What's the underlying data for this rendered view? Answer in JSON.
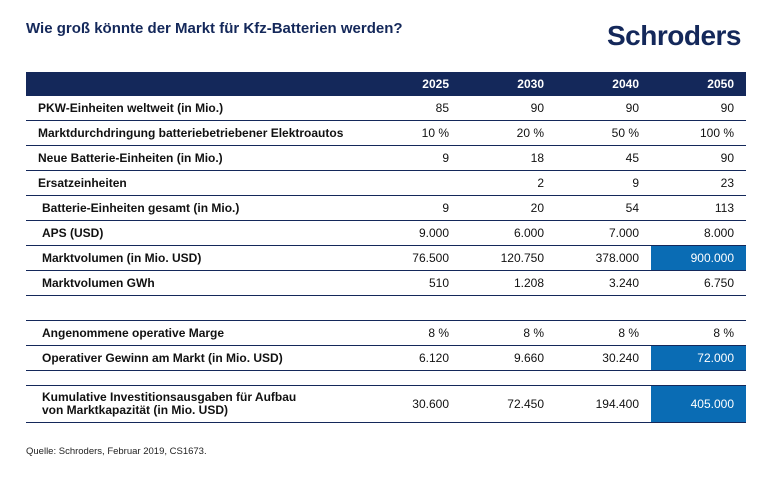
{
  "title": "Wie groß könnte der Markt für Kfz-Batterien werden?",
  "brand": "Schroders",
  "columns": [
    "2025",
    "2030",
    "2040",
    "2050"
  ],
  "rows": [
    {
      "label": "PKW-Einheiten weltweit (in Mio.)",
      "values": [
        "85",
        "90",
        "90",
        "90"
      ]
    },
    {
      "label": "Marktdurchdringung batteriebetriebener Elektroautos",
      "values": [
        "10 %",
        "20 %",
        "50 %",
        "100 %"
      ]
    },
    {
      "label": "Neue Batterie-Einheiten (in Mio.)",
      "values": [
        "9",
        "18",
        "45",
        "90"
      ]
    },
    {
      "label": "Ersatzeinheiten",
      "values": [
        "",
        "2",
        "9",
        "23"
      ]
    },
    {
      "label": "Batterie-Einheiten gesamt (in Mio.)",
      "values": [
        "9",
        "20",
        "54",
        "113"
      ]
    },
    {
      "label": "APS (USD)",
      "values": [
        "9.000",
        "6.000",
        "7.000",
        "8.000"
      ]
    },
    {
      "label": "Marktvolumen (in Mio. USD)",
      "values": [
        "76.500",
        "120.750",
        "378.000",
        "900.000"
      ]
    },
    {
      "label": "Marktvolumen GWh",
      "values": [
        "510",
        "1.208",
        "3.240",
        "6.750"
      ]
    },
    {
      "label": "Angenommene operative Marge",
      "values": [
        "8 %",
        "8 %",
        "8 %",
        "8 %"
      ]
    },
    {
      "label": "Operativer Gewinn am Markt (in Mio. USD)",
      "values": [
        "6.120",
        "9.660",
        "30.240",
        "72.000"
      ]
    },
    {
      "label_line1": "Kumulative Investitionsausgaben für Aufbau",
      "label_line2": "von Marktkapazität (in Mio. USD)",
      "values": [
        "30.600",
        "72.450",
        "194.400",
        "405.000"
      ]
    }
  ],
  "highlight_color": "#0a6cb4",
  "header_color": "#14285a",
  "source": "Quelle: Schroders, Februar 2019, CS1673."
}
